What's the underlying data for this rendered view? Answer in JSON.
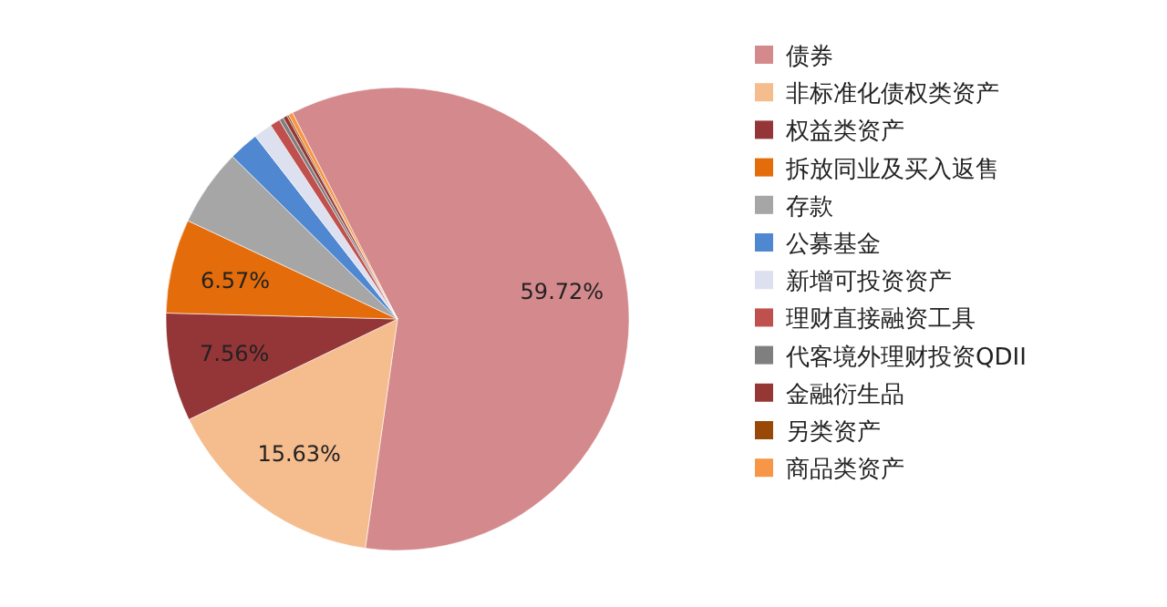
{
  "chart_data": {
    "type": "pie",
    "categories": [
      "债券",
      "非标准化债权类资产",
      "权益类资产",
      "拆放同业及买入返售",
      "存款",
      "公募基金",
      "新增可投资资产",
      "理财直接融资工具",
      "代客境外理财投资QDII",
      "金融衍生品",
      "另类资产",
      "商品类资产"
    ],
    "values": [
      59.72,
      15.63,
      7.56,
      6.57,
      5.4,
      2.1,
      1.3,
      0.7,
      0.3,
      0.3,
      0.12,
      0.3
    ],
    "colors": [
      "#d4898c",
      "#f5bc8e",
      "#943537",
      "#e46c0a",
      "#a6a6a6",
      "#4f87d0",
      "#dde0ee",
      "#c0504d",
      "#7f7f7f",
      "#953735",
      "#984807",
      "#f79646"
    ],
    "value_labels": [
      "59.72%",
      "15.63%",
      "7.56%",
      "6.57%",
      null,
      null,
      null,
      null,
      null,
      null,
      null,
      null
    ],
    "legend": "right"
  }
}
